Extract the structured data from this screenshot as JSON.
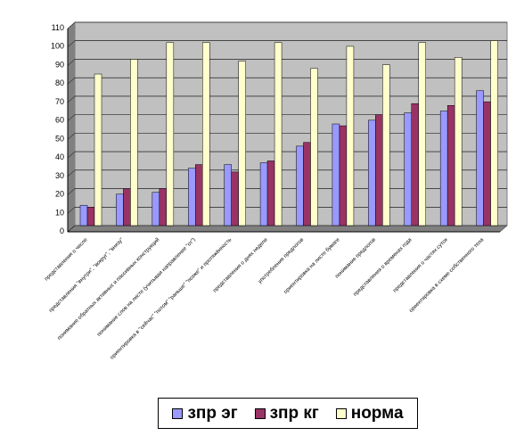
{
  "chart_data": {
    "type": "bar",
    "categories": [
      "представления о числе",
      "представления \"внутри\", \"вокруг\", \"внизу\"",
      "понимание обратных активных и пассивных конструкций",
      "понимание слов на листе (учитывая направление \"от\")",
      "ориентировка в \"сейчас\" \"потом\" \"раньше\" \"позже\" и протяжённость",
      "представления о днях недели",
      "употребление предлогов",
      "ориентировка на листе бумаги",
      "понимание предлогов",
      "представления о временах года",
      "представления о частях суток",
      "ориентировка в схеме собственного тела"
    ],
    "series": [
      {
        "name": "зпр эг",
        "color": "#9999ff",
        "values": [
          11,
          17,
          18,
          31,
          33,
          34,
          43,
          55,
          57,
          61,
          62,
          73
        ]
      },
      {
        "name": "зпр кг",
        "color": "#993366",
        "values": [
          10,
          20,
          20,
          33,
          29,
          35,
          45,
          54,
          60,
          66,
          65,
          67
        ]
      },
      {
        "name": "норма",
        "color": "#ffffcc",
        "values": [
          82,
          90,
          99,
          99,
          89,
          99,
          85,
          97,
          87,
          99,
          91,
          100
        ]
      }
    ],
    "yticks": [
      "0",
      "10",
      "20",
      "30",
      "40",
      "50",
      "60",
      "70",
      "80",
      "90",
      "100",
      "110"
    ],
    "ylim": [
      0,
      110
    ],
    "grid": true,
    "plot_background": "#c0c0c0",
    "legend_position": "bottom"
  }
}
